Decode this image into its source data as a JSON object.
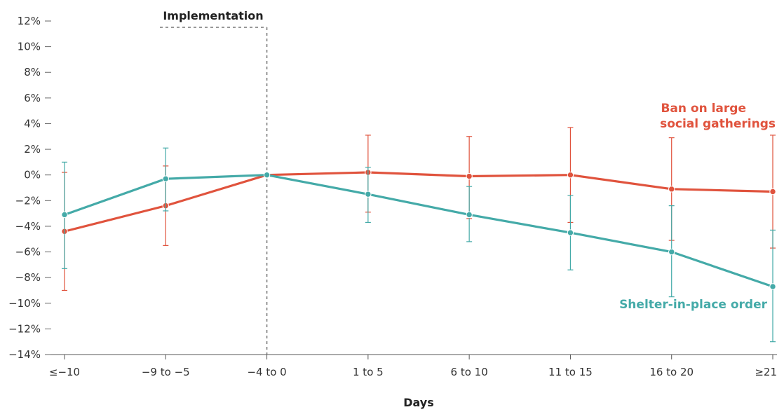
{
  "chart_data": {
    "type": "line",
    "categories": [
      "≤−10",
      "−9 to −5",
      "−4 to 0",
      "1 to 5",
      "6 to 10",
      "11 to 15",
      "16 to 20",
      "≥21"
    ],
    "xlabel": "Days",
    "ylabel": "",
    "ylim": [
      -14,
      12
    ],
    "yticks": [
      12,
      10,
      8,
      6,
      4,
      2,
      0,
      -2,
      -4,
      -6,
      -8,
      -10,
      -12,
      -14
    ],
    "ytick_labels": [
      "12%",
      "10%",
      "8%",
      "6%",
      "4%",
      "2%",
      "0%",
      "−2%",
      "−4%",
      "−6%",
      "−8%",
      "−10%",
      "−12%",
      "−14%"
    ],
    "grid": false,
    "annotation": {
      "label": "Implementation",
      "category_index": 2,
      "style": "dashed vertical line"
    },
    "series": [
      {
        "name": "Ban on large social gatherings",
        "label_lines": [
          "Ban on large",
          "social gatherings"
        ],
        "color": "#e0533d",
        "values": [
          -4.4,
          -2.4,
          0.0,
          0.2,
          -0.1,
          0.0,
          -1.1,
          -1.3
        ],
        "error_low": [
          -9.0,
          -5.5,
          0.0,
          -2.9,
          -3.4,
          -3.7,
          -5.1,
          -5.7
        ],
        "error_high": [
          0.2,
          0.7,
          0.0,
          3.1,
          3.0,
          3.7,
          2.9,
          3.1
        ]
      },
      {
        "name": "Shelter-in-place order",
        "label_lines": [
          "Shelter-in-place order"
        ],
        "color": "#44aaa8",
        "values": [
          -3.1,
          -0.3,
          0.0,
          -1.5,
          -3.1,
          -4.5,
          -6.0,
          -8.7
        ],
        "error_low": [
          -7.3,
          -2.8,
          0.0,
          -3.7,
          -5.2,
          -7.4,
          -9.5,
          -13.0
        ],
        "error_high": [
          1.0,
          2.1,
          0.0,
          0.6,
          -0.9,
          -1.6,
          -2.4,
          -4.3
        ]
      }
    ]
  }
}
